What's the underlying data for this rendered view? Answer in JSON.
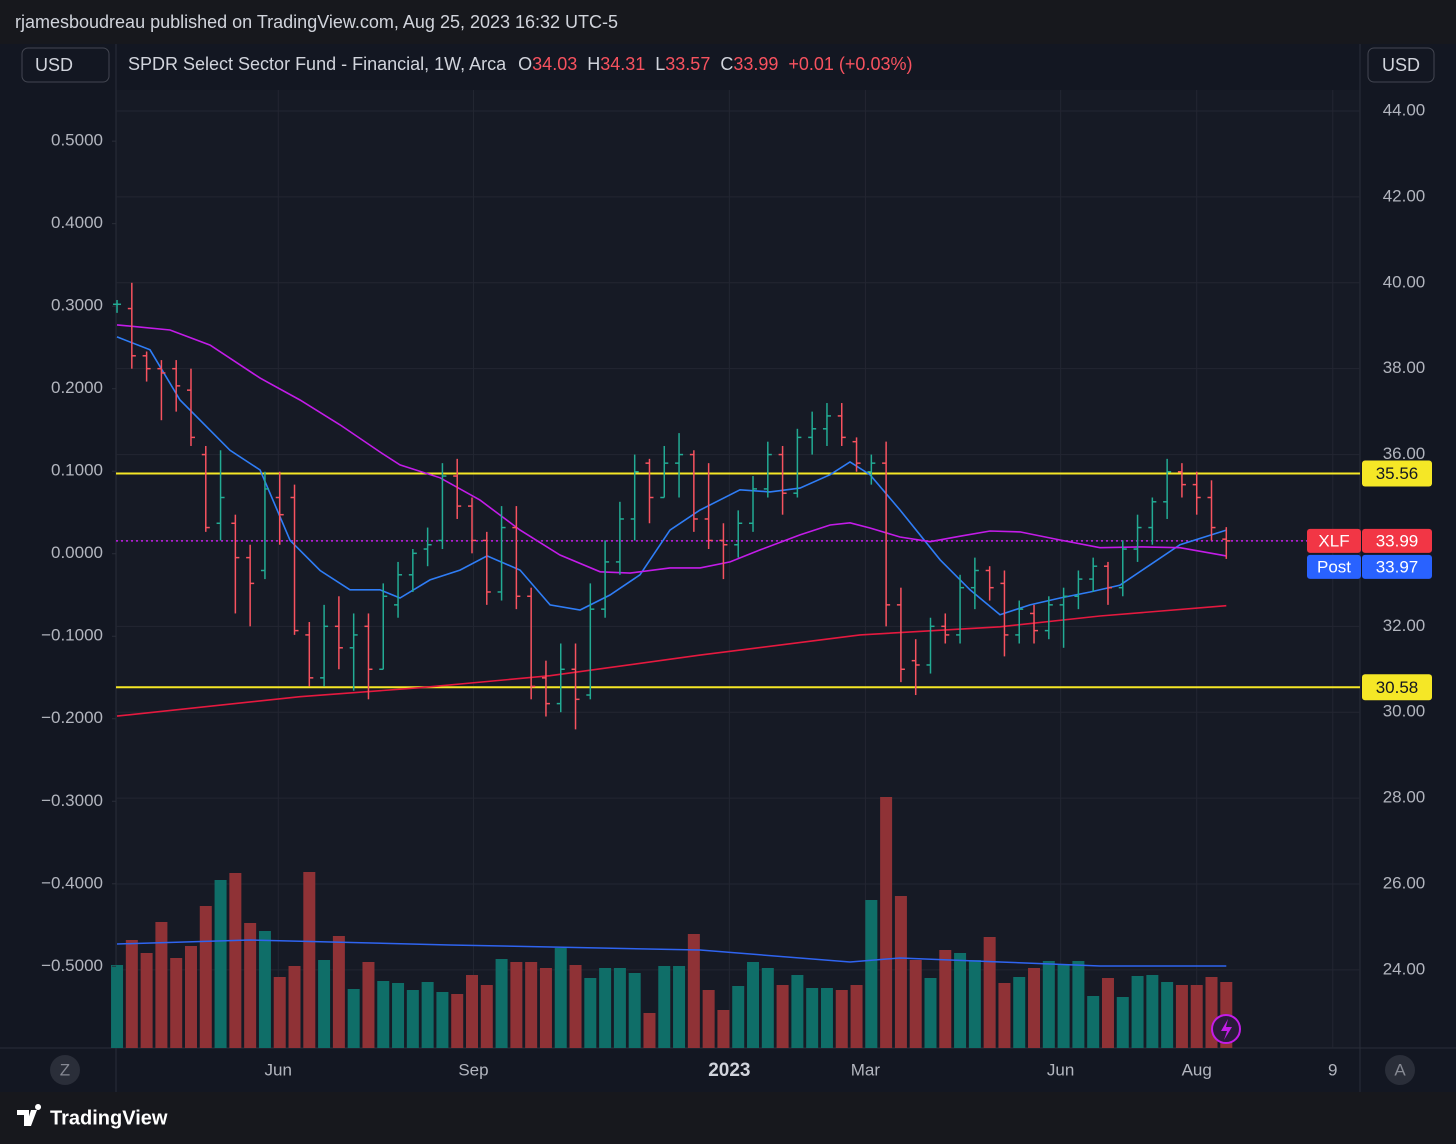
{
  "header": {
    "published": "rjamesboudreau published on TradingView.com, Aug 25, 2023 16:32 UTC-5",
    "currency_left": "USD",
    "currency_right": "USD",
    "z_button": "Z",
    "a_button": "A",
    "brand": "TradingView"
  },
  "legend": {
    "open_label": "O",
    "high_label": "H",
    "low_label": "L",
    "close_label": "C",
    "change": "+0.01 (+0.03%)"
  },
  "chart_data": {
    "type": "ohlc",
    "title": "SPDR Select Sector Fund - Financial, 1W, Arca",
    "x": [
      0,
      1,
      2,
      3,
      4,
      5,
      6,
      7,
      8,
      9,
      10,
      11,
      12,
      13,
      14,
      15,
      16,
      17,
      18,
      19,
      20,
      21,
      22,
      23,
      24,
      25,
      26,
      27,
      28,
      29,
      30,
      31,
      32,
      33,
      34,
      35,
      36,
      37,
      38,
      39,
      40,
      41,
      42,
      43,
      44,
      45,
      46,
      47,
      48,
      49,
      50,
      51,
      52,
      53,
      54,
      55,
      56,
      57,
      58,
      59,
      60,
      61,
      62,
      63,
      64,
      65,
      66,
      67,
      68,
      69,
      70,
      71,
      72,
      73,
      74,
      75
    ],
    "ohlc": [
      [
        39.5,
        39.6,
        39.3,
        39.5
      ],
      [
        39.4,
        40.0,
        38.0,
        38.3
      ],
      [
        38.3,
        38.4,
        37.7,
        38.0
      ],
      [
        38.0,
        38.2,
        36.8,
        37.9
      ],
      [
        38.0,
        38.2,
        37.0,
        37.6
      ],
      [
        37.5,
        38.0,
        36.2,
        36.4
      ],
      [
        36.0,
        36.2,
        34.2,
        34.3
      ],
      [
        34.4,
        36.1,
        34.0,
        35.0
      ],
      [
        34.4,
        34.6,
        32.3,
        33.6
      ],
      [
        33.6,
        33.9,
        32.0,
        33.0
      ],
      [
        33.3,
        35.6,
        33.1,
        35.2
      ],
      [
        35.0,
        35.6,
        33.9,
        34.6
      ],
      [
        35.0,
        35.3,
        31.8,
        31.9
      ],
      [
        31.8,
        32.1,
        30.6,
        30.8
      ],
      [
        30.8,
        32.5,
        30.6,
        32.0
      ],
      [
        32.0,
        32.7,
        31.0,
        31.5
      ],
      [
        31.5,
        32.3,
        30.5,
        31.8
      ],
      [
        32.0,
        32.3,
        30.3,
        31.0
      ],
      [
        31.0,
        33.0,
        31.0,
        32.7
      ],
      [
        32.5,
        33.5,
        32.2,
        33.2
      ],
      [
        33.2,
        33.8,
        32.8,
        33.7
      ],
      [
        33.8,
        34.3,
        33.4,
        33.9
      ],
      [
        34.0,
        35.8,
        33.8,
        35.5
      ],
      [
        35.5,
        35.9,
        34.5,
        34.8
      ],
      [
        34.8,
        35.0,
        33.7,
        34.0
      ],
      [
        34.0,
        34.2,
        32.5,
        32.8
      ],
      [
        32.8,
        34.8,
        32.6,
        34.3
      ],
      [
        34.3,
        34.8,
        32.4,
        32.7
      ],
      [
        32.7,
        32.9,
        30.3,
        30.6
      ],
      [
        30.8,
        31.2,
        29.9,
        30.2
      ],
      [
        30.2,
        31.6,
        30.0,
        31.0
      ],
      [
        31.0,
        31.6,
        29.6,
        30.3
      ],
      [
        30.4,
        33.0,
        30.3,
        32.4
      ],
      [
        32.4,
        34.0,
        32.2,
        33.5
      ],
      [
        33.5,
        34.9,
        33.2,
        34.5
      ],
      [
        34.5,
        36.0,
        34.0,
        35.6
      ],
      [
        35.8,
        35.9,
        34.4,
        35.0
      ],
      [
        35.0,
        36.2,
        35.0,
        35.8
      ],
      [
        35.8,
        36.5,
        35.0,
        36.0
      ],
      [
        36.0,
        36.1,
        34.2,
        34.5
      ],
      [
        34.5,
        35.8,
        33.8,
        34.0
      ],
      [
        34.0,
        34.4,
        33.1,
        33.9
      ],
      [
        33.9,
        34.7,
        33.6,
        34.4
      ],
      [
        34.4,
        35.5,
        34.2,
        35.2
      ],
      [
        35.2,
        36.3,
        35.0,
        36.0
      ],
      [
        36.0,
        36.2,
        34.6,
        35.1
      ],
      [
        35.1,
        36.6,
        35.0,
        36.4
      ],
      [
        36.4,
        37.0,
        36.0,
        36.6
      ],
      [
        36.6,
        37.2,
        36.2,
        36.9
      ],
      [
        36.9,
        37.2,
        36.2,
        36.4
      ],
      [
        36.3,
        36.4,
        35.6,
        35.8
      ],
      [
        35.6,
        36.0,
        35.3,
        35.8
      ],
      [
        35.8,
        36.3,
        32.0,
        32.5
      ],
      [
        32.5,
        32.9,
        30.7,
        31.0
      ],
      [
        31.2,
        31.7,
        30.4,
        31.1
      ],
      [
        31.1,
        32.2,
        30.9,
        32.0
      ],
      [
        32.0,
        32.3,
        31.6,
        31.8
      ],
      [
        31.8,
        33.2,
        31.6,
        32.9
      ],
      [
        32.9,
        33.6,
        32.4,
        33.3
      ],
      [
        33.3,
        33.4,
        32.6,
        32.9
      ],
      [
        33.0,
        33.3,
        31.3,
        31.8
      ],
      [
        31.8,
        32.6,
        31.6,
        32.4
      ],
      [
        32.3,
        32.5,
        31.6,
        31.9
      ],
      [
        31.9,
        32.7,
        31.7,
        32.5
      ],
      [
        32.5,
        32.9,
        31.5,
        32.7
      ],
      [
        32.7,
        33.3,
        32.4,
        33.1
      ],
      [
        33.1,
        33.6,
        32.8,
        33.4
      ],
      [
        33.4,
        33.5,
        32.5,
        32.9
      ],
      [
        32.9,
        34.0,
        32.7,
        33.8
      ],
      [
        33.8,
        34.6,
        33.5,
        34.3
      ],
      [
        34.3,
        35.0,
        33.9,
        34.9
      ],
      [
        34.9,
        35.9,
        34.5,
        35.6
      ],
      [
        35.6,
        35.8,
        35.0,
        35.3
      ],
      [
        35.3,
        35.6,
        34.6,
        35.0
      ],
      [
        35.0,
        35.4,
        34.0,
        34.3
      ],
      [
        34.03,
        34.31,
        33.57,
        33.99
      ]
    ],
    "up_color": "#22ab94",
    "down_color": "#f7525f",
    "ylim": [
      22.18,
      44.49
    ],
    "yticks": [
      {
        "value": 24,
        "label": "24.00"
      },
      {
        "value": 26,
        "label": "26.00"
      },
      {
        "value": 28,
        "label": "28.00"
      },
      {
        "value": 30,
        "label": "30.00"
      },
      {
        "value": 32,
        "label": "32.00"
      },
      {
        "value": 34,
        "label": "34.00"
      },
      {
        "value": 36,
        "label": "36.00"
      },
      {
        "value": 38,
        "label": "38.00"
      },
      {
        "value": 40,
        "label": "40.00"
      },
      {
        "value": 42,
        "label": "42.00"
      },
      {
        "value": 44,
        "label": "44.00"
      }
    ],
    "y2lim": [
      -0.599,
      0.562
    ],
    "y2ticks": [
      {
        "value": 0.5,
        "label": "0.5000"
      },
      {
        "value": 0.4,
        "label": "0.4000"
      },
      {
        "value": 0.3,
        "label": "0.3000"
      },
      {
        "value": 0.2,
        "label": "0.2000"
      },
      {
        "value": 0.1,
        "label": "0.1000"
      },
      {
        "value": 0,
        "label": "0.0000"
      },
      {
        "value": -0.1,
        "label": "−0.1000"
      },
      {
        "value": -0.2,
        "label": "−0.2000"
      },
      {
        "value": -0.3,
        "label": "−0.3000"
      },
      {
        "value": -0.4,
        "label": "−0.4000"
      },
      {
        "value": -0.5,
        "label": "−0.5000"
      }
    ],
    "xlim": [
      -0.07,
      84.04
    ],
    "xticks": [
      {
        "value": 10.9,
        "label": "Jun"
      },
      {
        "value": 24.1,
        "label": "Sep"
      },
      {
        "value": 41.4,
        "label": "2023"
      },
      {
        "value": 50.6,
        "label": "Mar"
      },
      {
        "value": 63.8,
        "label": "Jun"
      },
      {
        "value": 73.0,
        "label": "Aug"
      },
      {
        "value": 82.2,
        "label": "9"
      }
    ],
    "grid": true,
    "moving_averages": [
      {
        "color": "#2f7df6",
        "x": [
          0,
          2.23,
          4.26,
          7.64,
          9.67,
          11.7,
          13.73,
          15.75,
          17.78,
          19.13,
          21.16,
          23.19,
          25.02,
          27.25,
          29.28,
          31.31,
          33.33,
          35.36,
          37.39,
          39.42,
          42.12,
          44.15,
          46.18,
          48.21,
          49.56,
          50.91,
          52.94,
          55.65,
          57.67,
          59.7,
          61.73,
          63.76,
          65.79,
          67.82,
          69.84,
          71.87,
          75
        ],
        "values": [
          38.74,
          38.44,
          37.27,
          36.1,
          35.64,
          34.0,
          33.3,
          32.85,
          32.85,
          32.66,
          33.08,
          33.31,
          33.64,
          33.31,
          32.5,
          32.38,
          32.73,
          33.2,
          34.24,
          34.71,
          35.18,
          35.13,
          35.22,
          35.53,
          35.83,
          35.53,
          34.71,
          33.55,
          32.85,
          32.27,
          32.5,
          32.66,
          32.8,
          32.96,
          33.43,
          33.9,
          34.24
        ]
      },
      {
        "color": "#c31ce8",
        "x": [
          0,
          3.58,
          6.29,
          9.67,
          12.37,
          15.08,
          17.78,
          19.13,
          21.84,
          24.54,
          27.25,
          29.95,
          32.66,
          34.69,
          37.39,
          39.42,
          41.45,
          43.48,
          46.18,
          48.21,
          49.56,
          50.91,
          52.94,
          54.97,
          57.0,
          59.03,
          61.05,
          63.76,
          66.46,
          69.17,
          71.87,
          75
        ],
        "values": [
          39.02,
          38.9,
          38.55,
          37.78,
          37.27,
          36.69,
          36.06,
          35.76,
          35.46,
          34.94,
          34.24,
          33.66,
          33.27,
          33.24,
          33.36,
          33.36,
          33.5,
          33.78,
          34.13,
          34.36,
          34.41,
          34.29,
          34.08,
          33.97,
          34.1,
          34.22,
          34.2,
          34.01,
          33.83,
          33.85,
          33.83,
          33.64
        ]
      },
      {
        "color": "#e5193f",
        "x": [
          0,
          12.37,
          20.49,
          29.28,
          39.42,
          50.24,
          59.7,
          66.46,
          75
        ],
        "values": [
          29.91,
          30.36,
          30.57,
          30.85,
          31.33,
          31.8,
          31.99,
          32.24,
          32.48
        ]
      }
    ],
    "volume": {
      "ylim": [
        0,
        300
      ],
      "up_color": "#0f6e68",
      "down_color": "#8f3236",
      "values": [
        83,
        108,
        95,
        126,
        90,
        102,
        142,
        168,
        175,
        125,
        117,
        71,
        82,
        176,
        88,
        112,
        59,
        86,
        67,
        65,
        58,
        66,
        56,
        54,
        73,
        63,
        89,
        86,
        86,
        80,
        100,
        83,
        70,
        80,
        80,
        75,
        35,
        82,
        82,
        114,
        58,
        38,
        62,
        86,
        80,
        63,
        73,
        60,
        60,
        58,
        63,
        148,
        251,
        152,
        88,
        70,
        98,
        95,
        88,
        111,
        65,
        71,
        80,
        87,
        83,
        87,
        52,
        70,
        51,
        72,
        73,
        66,
        63,
        63,
        71,
        66
      ],
      "ma": {
        "color": "#2f64f0",
        "x": [
          0,
          9.0,
          22.5,
          32.66,
          39.42,
          49.56,
          52.94,
          59.7,
          66.46,
          75
        ],
        "values": [
          104,
          108,
          103,
          100,
          98,
          86,
          90,
          86,
          82,
          82
        ]
      }
    },
    "levels": [
      {
        "value": 35.56,
        "color": "#f5e726"
      },
      {
        "value": 30.58,
        "color": "#f5e726"
      }
    ],
    "last_price": {
      "name": "XLF",
      "value": 33.99,
      "color": "#f23645"
    },
    "post_price": {
      "name": "Post",
      "value": 33.97,
      "color": "#2962ff"
    }
  }
}
